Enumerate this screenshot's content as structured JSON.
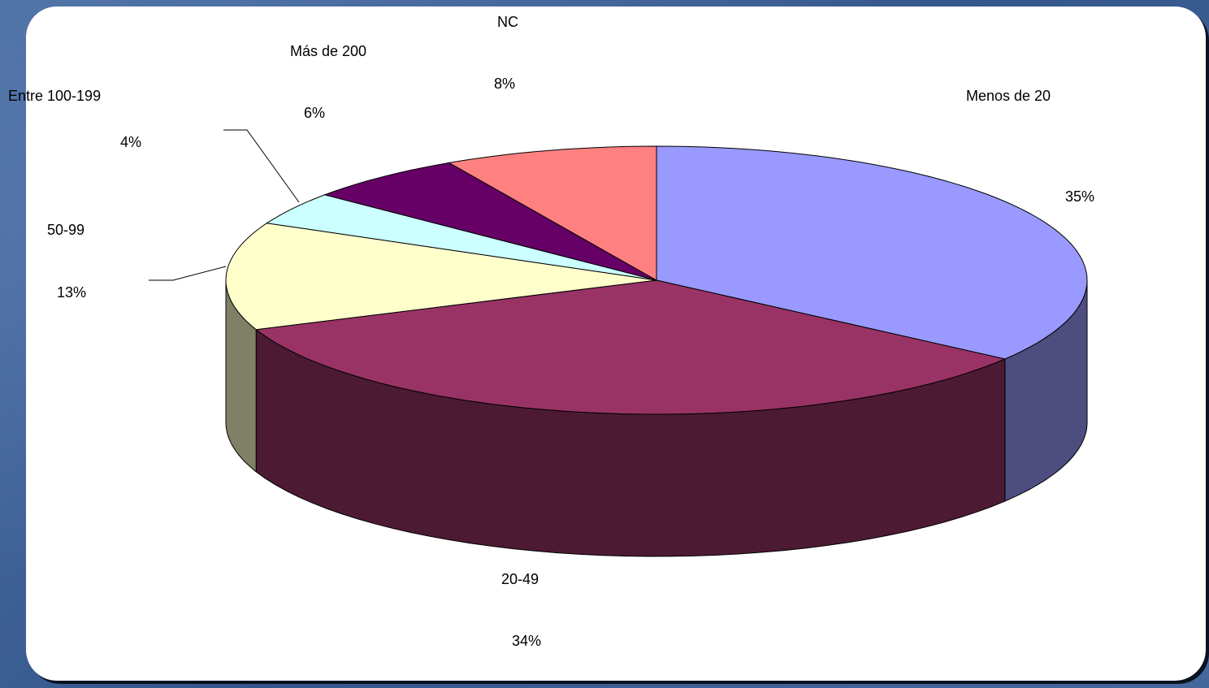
{
  "chart_data": {
    "type": "pie",
    "categories": [
      "Menos de 20",
      "20-49",
      "50-99",
      "Entre 100-199",
      "Más de 200",
      "NC"
    ],
    "values": [
      35,
      34,
      13,
      4,
      6,
      8
    ],
    "value_labels": [
      "35%",
      "34%",
      "13%",
      "4%",
      "6%",
      "8%"
    ],
    "colors": [
      "#9999ff",
      "#993366",
      "#ffffcc",
      "#ccffff",
      "#660066",
      "#ff8080"
    ],
    "side_colors": [
      "#4d4d80",
      "#4d1a33",
      "#808066",
      "#668080",
      "#330033",
      "#804040"
    ]
  }
}
